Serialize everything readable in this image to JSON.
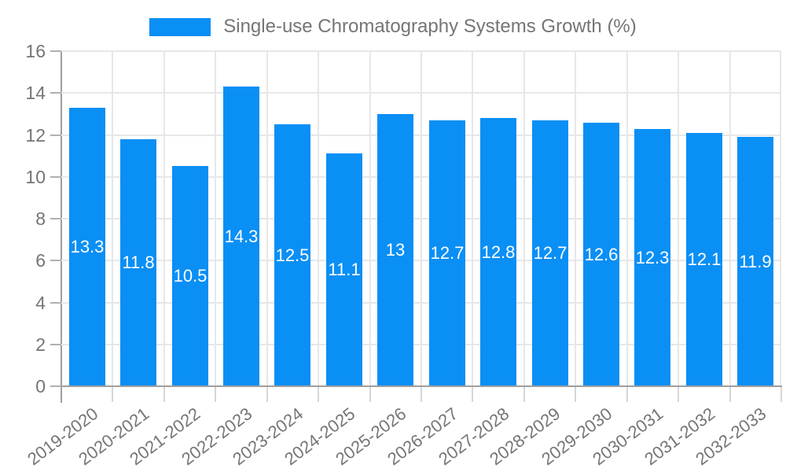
{
  "legend": {
    "label": "Single-use Chromatography Systems Growth (%)"
  },
  "chart_data": {
    "type": "bar",
    "title": "Single-use Chromatography Systems Growth (%)",
    "categories": [
      "2019-2020",
      "2020-2021",
      "2021-2022",
      "2022-2023",
      "2023-2024",
      "2024-2025",
      "2025-2026",
      "2026-2027",
      "2027-2028",
      "2028-2029",
      "2029-2030",
      "2030-2031",
      "2031-2032",
      "2032-2033"
    ],
    "values": [
      13.3,
      11.8,
      10.5,
      14.3,
      12.5,
      11.1,
      13,
      12.7,
      12.8,
      12.7,
      12.6,
      12.3,
      12.1,
      11.9
    ],
    "xlabel": "",
    "ylabel": "",
    "ylim": [
      0,
      16
    ],
    "yticks": [
      0,
      2,
      4,
      6,
      8,
      10,
      12,
      14,
      16
    ],
    "grid": true,
    "legend_position": "top-center",
    "value_labels": "inside-center",
    "xtick_rotation_deg": -37
  },
  "colors": {
    "bar_fill": "#0a8ff5",
    "gridline": "#e7e7e7",
    "axis_line": "#9e9e9e",
    "tick_text": "#757575",
    "value_label_text": "#ffffff",
    "xtick_mark": "#d6d6d6",
    "ytick_mark": "#b0b0b0",
    "background": "#ffffff"
  }
}
